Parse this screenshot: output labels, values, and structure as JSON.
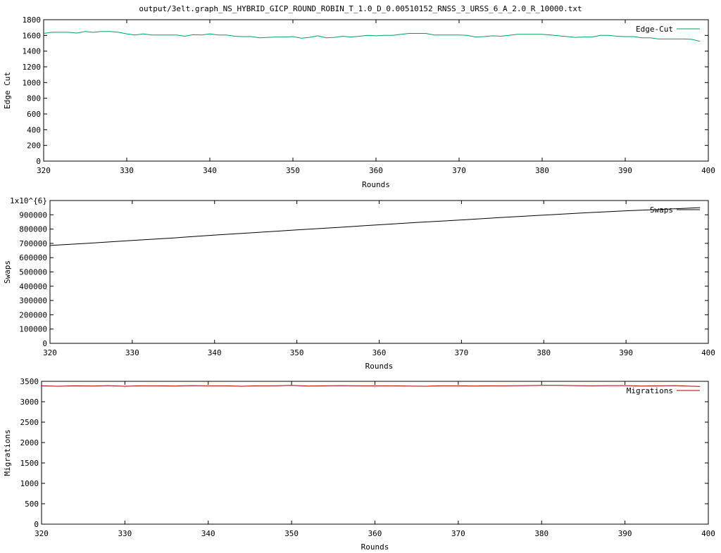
{
  "title": "output/3elt.graph_NS_HYBRID_GICP_ROUND_ROBIN_T_1.0_D_0.00510152_RNSS_3_URSS_6_A_2.0_R_10000.txt",
  "chart_data": [
    {
      "type": "line",
      "xlabel": "Rounds",
      "ylabel": "Edge Cut",
      "xlim": [
        320,
        400
      ],
      "ylim": [
        0,
        1800
      ],
      "xticks": [
        "320",
        "330",
        "340",
        "350",
        "360",
        "370",
        "380",
        "390",
        "400"
      ],
      "yticks": [
        "0",
        "200",
        "400",
        "600",
        "800",
        "1000",
        "1200",
        "1400",
        "1600",
        "1800"
      ],
      "legend": "top-right",
      "grid": false,
      "series": [
        {
          "name": "Edge-Cut",
          "color": "#00a060",
          "x": [
            320,
            321,
            322,
            323,
            324,
            325,
            326,
            327,
            328,
            329,
            330,
            331,
            332,
            333,
            334,
            335,
            336,
            337,
            338,
            339,
            340,
            341,
            342,
            343,
            344,
            345,
            346,
            347,
            348,
            349,
            350,
            351,
            352,
            353,
            354,
            355,
            356,
            357,
            358,
            359,
            360,
            361,
            362,
            363,
            364,
            365,
            366,
            367,
            368,
            369,
            370,
            371,
            372,
            373,
            374,
            375,
            376,
            377,
            378,
            379,
            380,
            381,
            382,
            383,
            384,
            385,
            386,
            387,
            388,
            389,
            390,
            391,
            392,
            393,
            394,
            395,
            396,
            397,
            398,
            399
          ],
          "y": [
            1625,
            1640,
            1640,
            1640,
            1630,
            1650,
            1640,
            1650,
            1650,
            1640,
            1620,
            1605,
            1620,
            1605,
            1605,
            1605,
            1605,
            1590,
            1610,
            1605,
            1620,
            1605,
            1605,
            1590,
            1585,
            1585,
            1570,
            1575,
            1580,
            1580,
            1585,
            1565,
            1575,
            1595,
            1570,
            1575,
            1590,
            1580,
            1590,
            1600,
            1595,
            1600,
            1600,
            1615,
            1625,
            1625,
            1625,
            1605,
            1605,
            1605,
            1605,
            1600,
            1580,
            1585,
            1595,
            1590,
            1600,
            1615,
            1615,
            1615,
            1615,
            1605,
            1595,
            1585,
            1575,
            1580,
            1580,
            1600,
            1600,
            1590,
            1585,
            1585,
            1570,
            1570,
            1555,
            1555,
            1555,
            1555,
            1550,
            1525
          ]
        }
      ]
    },
    {
      "type": "line",
      "xlabel": "Rounds",
      "ylabel": "Swaps",
      "xlim": [
        320,
        400
      ],
      "ylim": [
        0,
        1000000
      ],
      "xticks": [
        "320",
        "330",
        "340",
        "350",
        "360",
        "370",
        "380",
        "390",
        "400"
      ],
      "yticks": [
        "0",
        "100000",
        "200000",
        "300000",
        "400000",
        "500000",
        "600000",
        "700000",
        "800000",
        "900000",
        "1x10^{6}"
      ],
      "legend": "top-right",
      "grid": false,
      "series": [
        {
          "name": "Swaps",
          "color": "#000000",
          "x": [
            320,
            325,
            330,
            335,
            340,
            345,
            350,
            355,
            360,
            365,
            370,
            375,
            380,
            385,
            390,
            395,
            399
          ],
          "y": [
            685000,
            702000,
            720000,
            738000,
            758000,
            776000,
            794000,
            812000,
            830000,
            848000,
            864000,
            882000,
            898000,
            914000,
            928000,
            940000,
            950000
          ]
        }
      ]
    },
    {
      "type": "line",
      "xlabel": "Rounds",
      "ylabel": "Migrations",
      "xlim": [
        320,
        400
      ],
      "ylim": [
        0,
        3500
      ],
      "xticks": [
        "320",
        "330",
        "340",
        "350",
        "360",
        "370",
        "380",
        "390",
        "400"
      ],
      "yticks": [
        "0",
        "500",
        "1000",
        "1500",
        "2000",
        "2500",
        "3000",
        "3500"
      ],
      "legend": "top-right",
      "grid": false,
      "series": [
        {
          "name": "Migrations",
          "color": "#a00000",
          "x": [
            320,
            322,
            324,
            326,
            328,
            330,
            332,
            334,
            336,
            338,
            340,
            342,
            344,
            346,
            348,
            350,
            352,
            354,
            356,
            358,
            360,
            362,
            364,
            366,
            368,
            370,
            372,
            374,
            376,
            378,
            380,
            382,
            384,
            386,
            388,
            390,
            392,
            394,
            396,
            398,
            399
          ],
          "y": [
            3390,
            3380,
            3390,
            3385,
            3395,
            3380,
            3390,
            3390,
            3385,
            3395,
            3390,
            3390,
            3380,
            3390,
            3390,
            3400,
            3385,
            3390,
            3395,
            3390,
            3390,
            3390,
            3385,
            3380,
            3390,
            3390,
            3385,
            3390,
            3390,
            3395,
            3400,
            3400,
            3395,
            3390,
            3395,
            3395,
            3385,
            3390,
            3395,
            3380,
            3375
          ]
        }
      ]
    }
  ]
}
